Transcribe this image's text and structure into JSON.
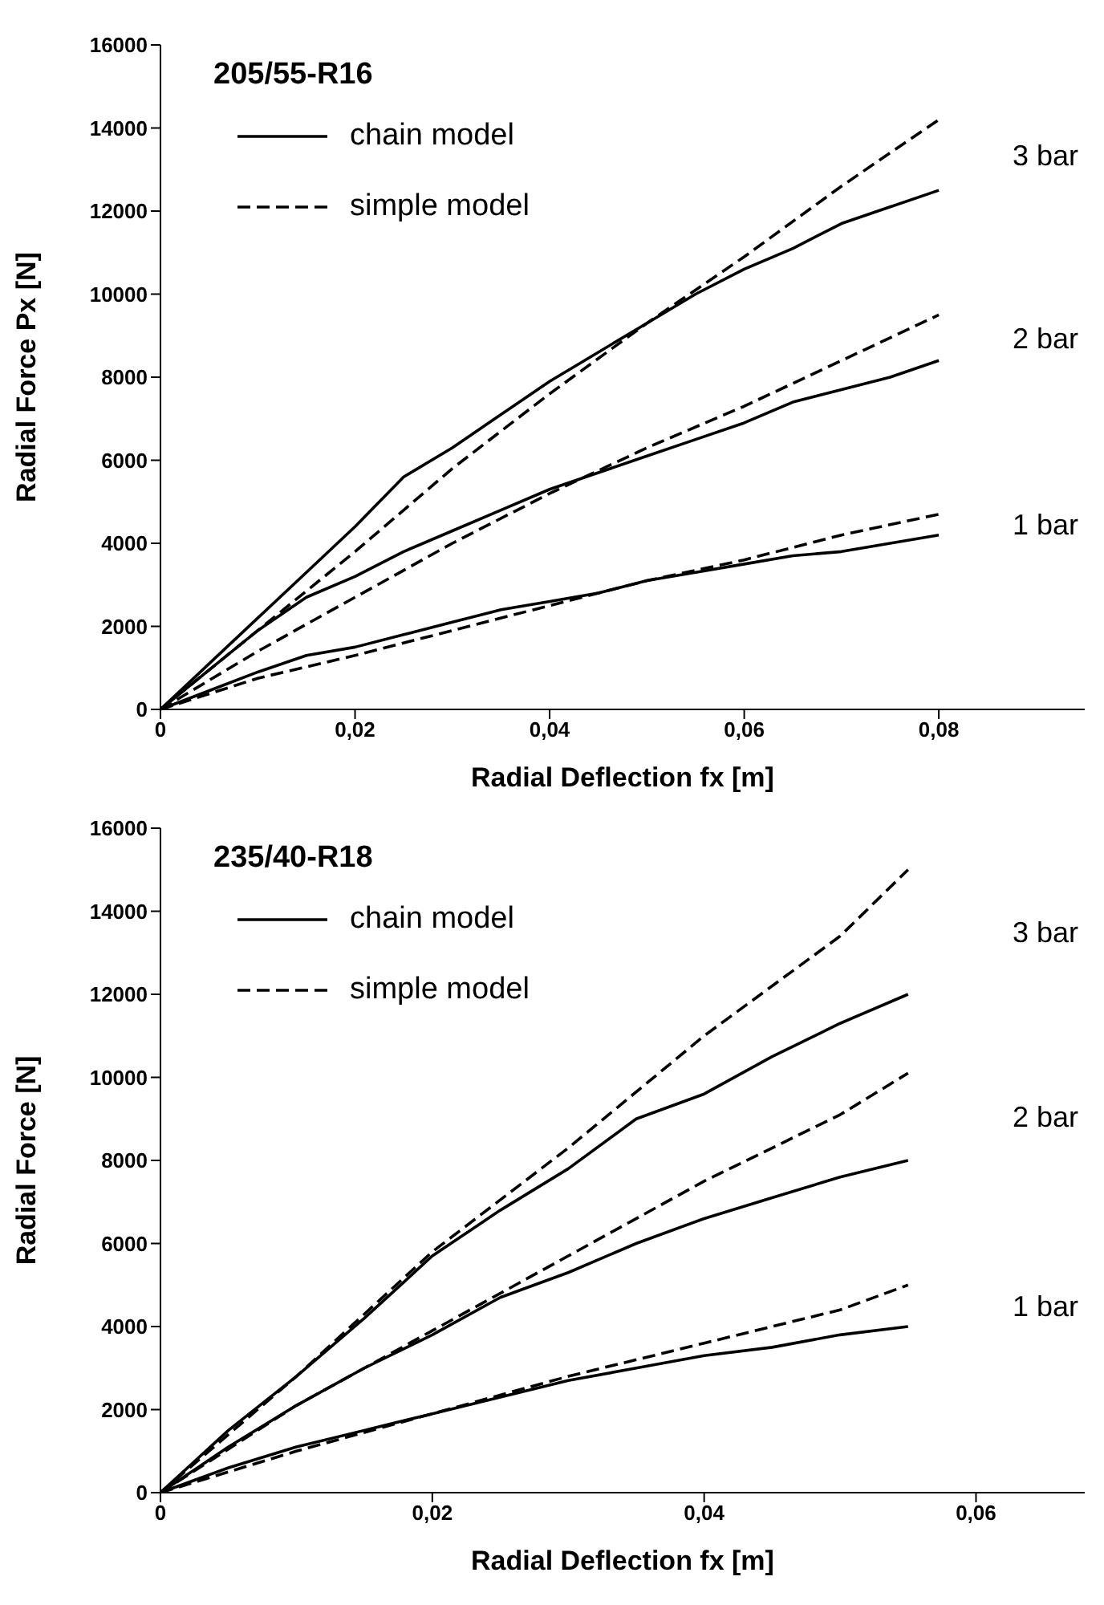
{
  "chart_data": [
    {
      "type": "line",
      "title": "205/55-R16",
      "xlabel": "Radial Deflection fx [m]",
      "ylabel": "Radial Force Px [N]",
      "xlim": [
        0,
        0.095
      ],
      "xticks": [
        0,
        {
          "value": 0.02,
          "label": "0,02"
        },
        {
          "value": 0.04,
          "label": "0,04"
        },
        {
          "value": 0.06,
          "label": "0,06"
        },
        {
          "value": 0.08,
          "label": "0,08"
        }
      ],
      "ylim": [
        0,
        16000
      ],
      "yticks": [
        0,
        2000,
        4000,
        6000,
        8000,
        10000,
        12000,
        14000,
        16000
      ],
      "grid": false,
      "legend": "top left",
      "marker": "none",
      "annotations": [
        "3 bar",
        "2 bar",
        "1 bar"
      ],
      "series": [
        {
          "name": "chain model",
          "color": "#000000",
          "line_style": "solid",
          "x": [
            0,
            0.01,
            0.015,
            0.02,
            0.025,
            0.03,
            0.035,
            0.04,
            0.045,
            0.05,
            0.055,
            0.06,
            0.065,
            0.07,
            0.075,
            0.08
          ],
          "values": [
            0,
            2200,
            3300,
            4400,
            5600,
            6300,
            7100,
            7900,
            8600,
            9300,
            10000,
            10600,
            11100,
            11700,
            12100,
            12500
          ]
        },
        {
          "name": "simple model",
          "color": "#000000",
          "line_style": "dashed",
          "x": [
            0,
            0.01,
            0.02,
            0.03,
            0.04,
            0.05,
            0.06,
            0.07,
            0.08
          ],
          "values": [
            0,
            1900,
            3800,
            5800,
            7600,
            9300,
            10900,
            12600,
            14200
          ]
        },
        {
          "color": "#000000",
          "line_style": "solid",
          "x": [
            0,
            0.01,
            0.015,
            0.02,
            0.025,
            0.03,
            0.035,
            0.04,
            0.045,
            0.05,
            0.055,
            0.06,
            0.065,
            0.07,
            0.075,
            0.08
          ],
          "values": [
            0,
            1900,
            2700,
            3200,
            3800,
            4300,
            4800,
            5300,
            5700,
            6100,
            6500,
            6900,
            7400,
            7700,
            8000,
            8400
          ]
        },
        {
          "color": "#000000",
          "line_style": "dashed",
          "x": [
            0,
            0.01,
            0.02,
            0.03,
            0.04,
            0.05,
            0.06,
            0.07,
            0.08
          ],
          "values": [
            0,
            1400,
            2700,
            4000,
            5200,
            6300,
            7300,
            8400,
            9500
          ]
        },
        {
          "color": "#000000",
          "line_style": "solid",
          "x": [
            0,
            0.01,
            0.015,
            0.02,
            0.025,
            0.03,
            0.035,
            0.04,
            0.045,
            0.05,
            0.055,
            0.06,
            0.065,
            0.07,
            0.075,
            0.08
          ],
          "values": [
            0,
            900,
            1300,
            1500,
            1800,
            2100,
            2400,
            2600,
            2800,
            3100,
            3300,
            3500,
            3700,
            3800,
            4000,
            4200
          ]
        },
        {
          "color": "#000000",
          "line_style": "dashed",
          "x": [
            0,
            0.01,
            0.02,
            0.03,
            0.04,
            0.05,
            0.06,
            0.07,
            0.08
          ],
          "values": [
            0,
            750,
            1300,
            1900,
            2500,
            3100,
            3600,
            4200,
            4700
          ]
        }
      ]
    },
    {
      "type": "line",
      "title": "235/40-R18",
      "xlabel": "Radial Deflection fx [m]",
      "ylabel": "Radial Force [N]",
      "xlim": [
        0,
        0.068
      ],
      "xticks": [
        0,
        {
          "value": 0.02,
          "label": "0,02"
        },
        {
          "value": 0.04,
          "label": "0,04"
        },
        {
          "value": 0.06,
          "label": "0,06"
        }
      ],
      "ylim": [
        0,
        16000
      ],
      "yticks": [
        0,
        2000,
        4000,
        6000,
        8000,
        10000,
        12000,
        14000,
        16000
      ],
      "grid": false,
      "legend": "top left",
      "marker": "none",
      "annotations": [
        "3 bar",
        "2 bar",
        "1 bar"
      ],
      "series": [
        {
          "name": "chain model",
          "color": "#000000",
          "line_style": "solid",
          "x": [
            0,
            0.005,
            0.01,
            0.015,
            0.02,
            0.025,
            0.03,
            0.035,
            0.04,
            0.045,
            0.05,
            0.055
          ],
          "values": [
            0,
            1500,
            2800,
            4200,
            5700,
            6800,
            7800,
            9000,
            9600,
            10500,
            11300,
            12000
          ]
        },
        {
          "name": "simple model",
          "color": "#000000",
          "line_style": "dashed",
          "x": [
            0,
            0.01,
            0.02,
            0.03,
            0.04,
            0.05,
            0.055
          ],
          "values": [
            0,
            2800,
            5800,
            8300,
            11000,
            13400,
            15000
          ]
        },
        {
          "color": "#000000",
          "line_style": "solid",
          "x": [
            0,
            0.005,
            0.01,
            0.015,
            0.02,
            0.025,
            0.03,
            0.035,
            0.04,
            0.045,
            0.05,
            0.055
          ],
          "values": [
            0,
            1100,
            2100,
            3000,
            3800,
            4700,
            5300,
            6000,
            6600,
            7100,
            7600,
            8000
          ]
        },
        {
          "color": "#000000",
          "line_style": "dashed",
          "x": [
            0,
            0.01,
            0.02,
            0.03,
            0.04,
            0.05,
            0.055
          ],
          "values": [
            0,
            2100,
            3900,
            5700,
            7500,
            9100,
            10100
          ]
        },
        {
          "color": "#000000",
          "line_style": "solid",
          "x": [
            0,
            0.005,
            0.01,
            0.015,
            0.02,
            0.025,
            0.03,
            0.035,
            0.04,
            0.045,
            0.05,
            0.055
          ],
          "values": [
            0,
            600,
            1100,
            1500,
            1900,
            2300,
            2700,
            3000,
            3300,
            3500,
            3800,
            4000
          ]
        },
        {
          "color": "#000000",
          "line_style": "dashed",
          "x": [
            0,
            0.01,
            0.02,
            0.03,
            0.04,
            0.05,
            0.055
          ],
          "values": [
            0,
            1000,
            1900,
            2800,
            3600,
            4400,
            5000
          ]
        }
      ]
    }
  ]
}
